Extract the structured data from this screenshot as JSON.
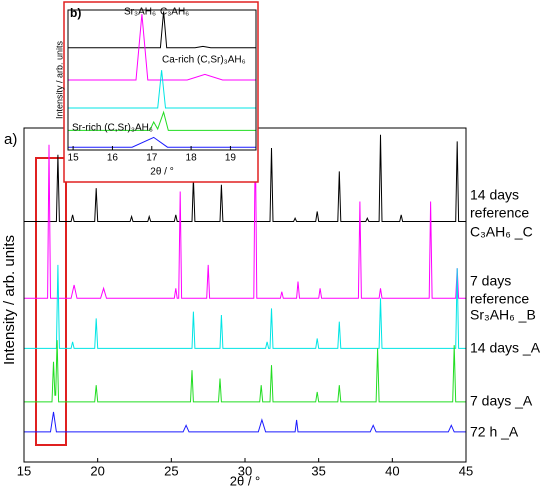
{
  "chart_data": [
    {
      "type": "line",
      "panel_label": "a)",
      "x_label": "2θ / °",
      "y_label": "Intensity / arb. units",
      "xlim": [
        15,
        45
      ],
      "xticks": [
        15,
        20,
        25,
        30,
        35,
        40,
        45
      ],
      "ylim": [
        0,
        100
      ],
      "series": [
        {
          "labels": [
            "14 days",
            "reference",
            "C₃AH₆ _C"
          ],
          "color": "#000000",
          "x": [
            15,
            17.2,
            17.3,
            17.4,
            18.2,
            18.3,
            18.4,
            19.8,
            19.9,
            20.0,
            22.2,
            22.3,
            22.4,
            23.4,
            23.5,
            23.6,
            25.2,
            25.3,
            25.4,
            26.4,
            26.5,
            26.6,
            28.3,
            28.4,
            28.5,
            31.7,
            31.8,
            31.9,
            33.3,
            33.4,
            33.5,
            34.8,
            34.9,
            35.0,
            36.3,
            36.4,
            36.5,
            38.2,
            38.3,
            38.4,
            39.1,
            39.2,
            39.3,
            40.5,
            40.6,
            40.7,
            44.3,
            44.4,
            44.5,
            45
          ],
          "values": [
            72,
            72,
            92,
            72,
            72,
            74,
            72,
            72,
            82,
            72,
            72,
            73.5,
            72,
            72,
            73.5,
            72,
            72,
            74,
            72,
            72,
            85,
            72,
            72,
            83,
            72,
            72,
            94,
            72,
            72,
            73,
            72,
            72,
            75,
            72,
            72,
            87,
            72,
            72,
            73,
            72,
            72,
            98,
            72,
            72,
            74,
            72,
            72,
            96,
            72,
            72
          ]
        },
        {
          "labels": [
            "7 days",
            "reference",
            "Sr₃AH₆ _B"
          ],
          "color": "#ff00ff",
          "x": [
            15,
            16.6,
            16.7,
            16.8,
            18.2,
            18.4,
            18.6,
            20.2,
            20.4,
            20.6,
            25.2,
            25.3,
            25.4,
            25.5,
            25.6,
            25.7,
            27.4,
            27.5,
            27.6,
            30.6,
            30.7,
            30.8,
            32.4,
            32.5,
            32.6,
            33.5,
            33.6,
            33.7,
            35.0,
            35.1,
            35.2,
            37.7,
            37.8,
            37.9,
            39.1,
            39.2,
            39.3,
            42.5,
            42.6,
            42.7,
            44.3,
            44.4,
            44.5,
            45
          ],
          "values": [
            49,
            49,
            95,
            49,
            49,
            53,
            49,
            49,
            52,
            49,
            49,
            52,
            49,
            49,
            81,
            49,
            49,
            59,
            49,
            49,
            99,
            49,
            49,
            51,
            49,
            49,
            54,
            49,
            49,
            52,
            49,
            49,
            78,
            49,
            49,
            52,
            49,
            49,
            78,
            49,
            49,
            58,
            49,
            49
          ]
        },
        {
          "labels": [
            "14 days _A"
          ],
          "color": "#00e5e5",
          "x": [
            15,
            17.2,
            17.3,
            17.4,
            18.2,
            18.3,
            18.4,
            19.8,
            19.9,
            20.0,
            26.4,
            26.5,
            26.6,
            28.3,
            28.4,
            28.5,
            31.4,
            31.5,
            31.6,
            31.7,
            31.8,
            31.9,
            34.8,
            34.9,
            35.0,
            36.3,
            36.4,
            36.5,
            39.1,
            39.2,
            39.3,
            44.3,
            44.4,
            44.5,
            45
          ],
          "values": [
            34,
            34,
            59,
            34,
            34,
            36,
            34,
            34,
            43,
            34,
            34,
            45,
            34,
            34,
            44,
            34,
            34,
            36,
            34,
            34,
            46,
            34,
            34,
            37,
            34,
            34,
            42,
            34,
            34,
            49,
            34,
            34,
            58,
            34,
            34
          ]
        },
        {
          "labels": [
            "7 days _A"
          ],
          "color": "#22dd22",
          "x": [
            15,
            16.9,
            17.0,
            17.1,
            17.15,
            17.25,
            17.35,
            19.8,
            19.9,
            20.0,
            26.3,
            26.4,
            26.5,
            28.2,
            28.3,
            28.4,
            31.0,
            31.1,
            31.2,
            31.7,
            31.8,
            31.9,
            34.8,
            34.9,
            35.0,
            36.3,
            36.4,
            36.5,
            38.9,
            39.0,
            39.1,
            44.1,
            44.2,
            44.3,
            45
          ],
          "values": [
            18,
            18,
            30,
            20,
            20,
            36.5,
            18,
            18,
            23,
            18,
            18,
            27.5,
            18,
            18,
            25,
            18,
            18,
            23,
            18,
            18,
            29,
            18,
            18,
            21,
            18,
            18,
            23,
            18,
            18,
            34,
            18,
            18,
            35,
            18,
            18
          ]
        },
        {
          "labels": [
            "72 h _A"
          ],
          "color": "#1a1aff",
          "x": [
            15,
            16.8,
            17.0,
            17.2,
            25.8,
            26.0,
            26.2,
            30.9,
            31.15,
            31.4,
            33.4,
            33.5,
            33.6,
            38.5,
            38.7,
            38.9,
            43.8,
            44.0,
            44.2,
            45
          ],
          "values": [
            9,
            9,
            15,
            9,
            9,
            11,
            9,
            9,
            12.6,
            9,
            9,
            12.6,
            9,
            9,
            11,
            9,
            9,
            11,
            9,
            9
          ]
        }
      ]
    },
    {
      "type": "line",
      "panel_label": "b)",
      "x_label": "2θ / °",
      "y_label": "Intensity / arb. units",
      "xlim": [
        14.87,
        19.65
      ],
      "xticks": [
        15,
        16,
        17,
        18,
        19
      ],
      "ylim": [
        0,
        100
      ],
      "annotations": [
        {
          "text": "Sr₃AH₆",
          "color": "#ff00ff"
        },
        {
          "text": "C₃AH₆",
          "color": "#000000"
        },
        {
          "text": "Ca-rich (C,Sr)₃AH₆",
          "color": "#00c8c8"
        },
        {
          "text": "Sr-rich (C,Sr)₃AH₆",
          "color": "#1a1aff"
        }
      ],
      "series": [
        {
          "color": "#000000",
          "x": [
            14.87,
            17.22,
            17.3,
            17.38,
            18.1,
            18.3,
            18.5,
            19.65
          ],
          "values": [
            73,
            73,
            99,
            73,
            73,
            74,
            73,
            73
          ]
        },
        {
          "color": "#ff00ff",
          "x": [
            14.87,
            16.6,
            16.75,
            16.9,
            17.9,
            18.35,
            18.8,
            19.65
          ],
          "values": [
            50,
            50,
            97,
            50,
            50,
            54,
            50,
            50
          ]
        },
        {
          "color": "#00e5e5",
          "x": [
            14.87,
            17.15,
            17.25,
            17.35,
            19.65
          ],
          "values": [
            30,
            30,
            57,
            30,
            30
          ]
        },
        {
          "color": "#22dd22",
          "x": [
            14.87,
            16.95,
            17.05,
            17.15,
            17.3,
            17.42,
            19.65
          ],
          "values": [
            14,
            14,
            20,
            15,
            27,
            14,
            14
          ]
        },
        {
          "color": "#1a1aff",
          "x": [
            14.87,
            16.5,
            17.05,
            17.4,
            19.65
          ],
          "values": [
            2,
            2,
            9,
            2,
            2
          ]
        }
      ]
    }
  ]
}
